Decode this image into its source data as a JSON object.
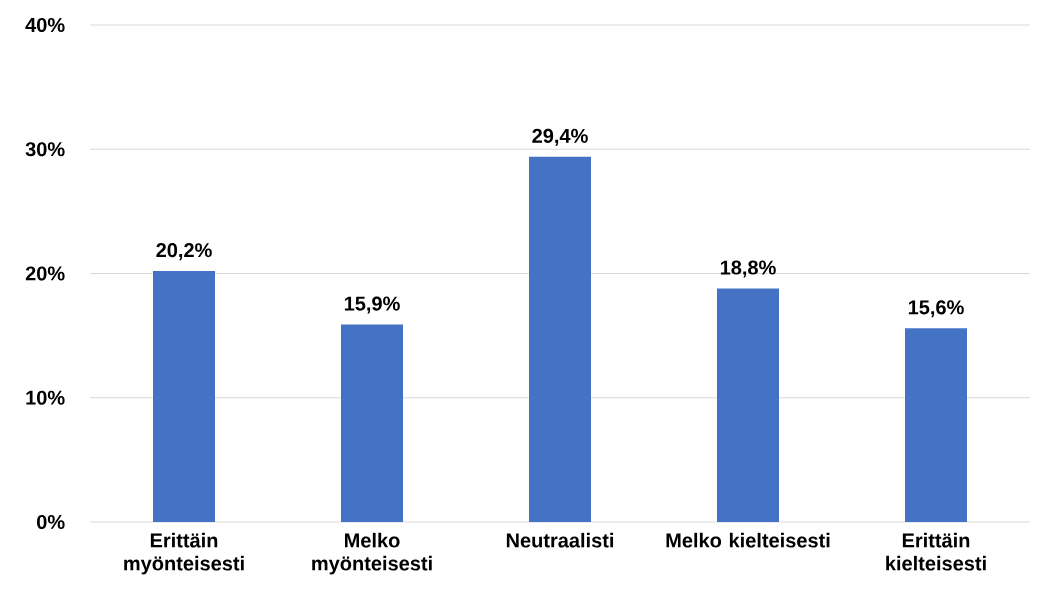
{
  "chart_data": {
    "type": "bar",
    "categories": [
      "Erittäin myönteisesti",
      "Melko myönteisesti",
      "Neutraalisti",
      "Melko kielteisesti",
      "Erittäin kielteisesti"
    ],
    "values": [
      20.2,
      15.9,
      29.4,
      18.8,
      15.6
    ],
    "value_labels": [
      "20,2%",
      "15,9%",
      "29,4%",
      "18,8%",
      "15,6%"
    ],
    "color": "#4472c4",
    "ylim": [
      0,
      40
    ],
    "yticks": [
      {
        "value": 0,
        "label": "0%"
      },
      {
        "value": 10,
        "label": "10%"
      },
      {
        "value": 20,
        "label": "20%"
      },
      {
        "value": 30,
        "label": "30%"
      },
      {
        "value": 40,
        "label": "40%"
      }
    ],
    "grid": "y"
  }
}
